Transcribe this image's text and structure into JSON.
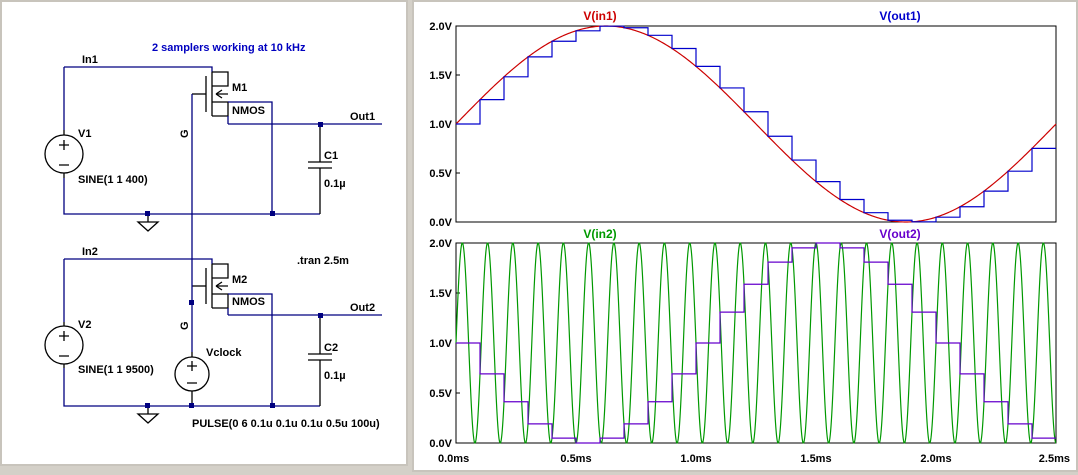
{
  "schematic": {
    "title": "2 samplers working at 10 kHz",
    "tran_directive": ".tran 2.5m",
    "nets": {
      "in1": "In1",
      "in2": "In2",
      "out1": "Out1",
      "out2": "Out2"
    },
    "transistors": [
      {
        "name": "M1",
        "model": "NMOS",
        "gate": "G"
      },
      {
        "name": "M2",
        "model": "NMOS",
        "gate": "G"
      }
    ],
    "capacitors": [
      {
        "name": "C1",
        "value": "0.1µ"
      },
      {
        "name": "C2",
        "value": "0.1µ"
      }
    ],
    "sources": [
      {
        "name": "V1",
        "spec": "SINE(1 1 400)"
      },
      {
        "name": "V2",
        "spec": "SINE(1 1 9500)"
      },
      {
        "name": "Vclock",
        "spec": "PULSE(0 6 0.1u 0.1u 0.1u 0.5u 100u)"
      }
    ]
  },
  "waveforms": {
    "colors": {
      "in1": "#cc0000",
      "out1": "#0000cc",
      "in2": "#009900",
      "out2": "#6600cc"
    },
    "x_ticks": [
      "0.0ms",
      "0.5ms",
      "1.0ms",
      "1.5ms",
      "2.0ms",
      "2.5ms"
    ],
    "y_ticks": [
      "0.0V",
      "0.5V",
      "1.0V",
      "1.5V",
      "2.0V"
    ],
    "top_pane": {
      "trace_a": "V(in1)",
      "trace_b": "V(out1)"
    },
    "bottom_pane": {
      "trace_a": "V(in2)",
      "trace_b": "V(out2)"
    }
  },
  "chart_data": [
    {
      "type": "line",
      "xlabel": "",
      "ylabel": "",
      "xlim": [
        0,
        2.5
      ],
      "ylim": [
        0,
        2
      ],
      "x_unit": "ms",
      "series": [
        {
          "name": "V(in1)",
          "function": "1 + sin(2*pi*400*t)",
          "frequency_hz": 400,
          "offset": 1,
          "amplitude": 1
        },
        {
          "name": "V(out1)",
          "kind": "sample-and-hold",
          "sample_period_ms": 0.1
        }
      ]
    },
    {
      "type": "line",
      "xlabel": "",
      "ylabel": "",
      "xlim": [
        0,
        2.5
      ],
      "ylim": [
        0,
        2
      ],
      "x_unit": "ms",
      "series": [
        {
          "name": "V(in2)",
          "function": "1 + sin(2*pi*9500*t)",
          "frequency_hz": 9500,
          "offset": 1,
          "amplitude": 1
        },
        {
          "name": "V(out2)",
          "kind": "sample-and-hold",
          "sample_period_ms": 0.1
        }
      ]
    }
  ]
}
